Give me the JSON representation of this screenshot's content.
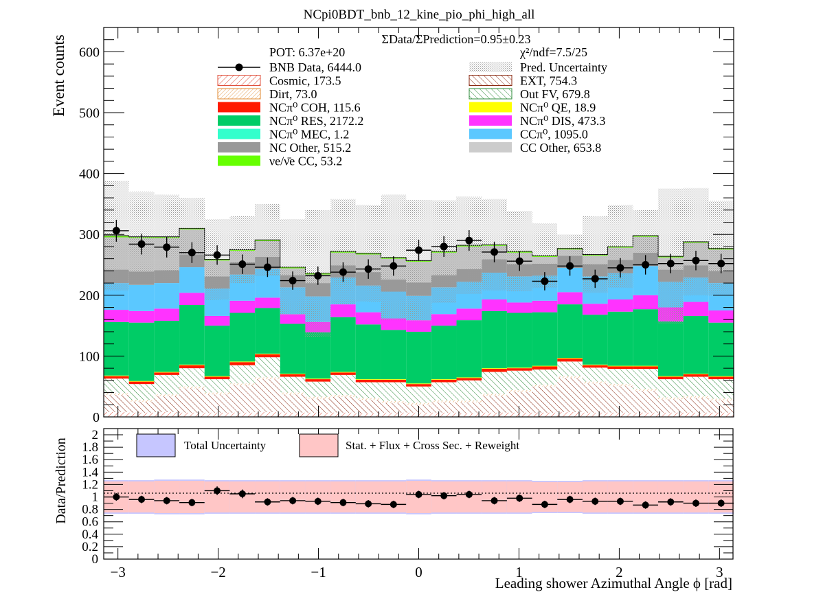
{
  "chart_data": [
    {
      "type": "bar",
      "stacked": true,
      "title": "NCpi0BDT_bnb_12_kine_pio_phi_high_all",
      "ylabel": "Event counts",
      "xlim": [
        -3.14159,
        3.14159
      ],
      "ylim": [
        0,
        640
      ],
      "y_ticks": [
        "0",
        "100",
        "200",
        "300",
        "400",
        "500",
        "600"
      ],
      "ratio_text": "ΣData/ΣPrediction=0.95±0.23",
      "pot_text": "POT: 6.37e+20",
      "chi2_text": "χ²/ndf=7.5/25",
      "legend": [
        {
          "key": "data",
          "label": "BNB Data, 6444.0"
        },
        {
          "key": "unc",
          "label": "Pred. Uncertainty"
        },
        {
          "key": "cosmic",
          "label": "Cosmic, 173.5"
        },
        {
          "key": "ext",
          "label": "EXT, 754.3"
        },
        {
          "key": "dirt",
          "label": "Dirt, 73.0"
        },
        {
          "key": "outfv",
          "label": "Out FV, 679.8"
        },
        {
          "key": "coh",
          "label": "NCπ⁰ COH,  115.6"
        },
        {
          "key": "qe",
          "label": "NCπ⁰ QE,  18.9"
        },
        {
          "key": "res",
          "label": "NCπ⁰ RES,  2172.2"
        },
        {
          "key": "dis",
          "label": "NCπ⁰ DIS,  473.3"
        },
        {
          "key": "mec",
          "label": "NCπ⁰ MEC,  1.2"
        },
        {
          "key": "ccpi0",
          "label": "CCπ⁰, 1095.0"
        },
        {
          "key": "ncother",
          "label": "NC Other, 515.2"
        },
        {
          "key": "ccother",
          "label": "CC Other, 653.8"
        },
        {
          "key": "nue",
          "label": "νe/ν̄e CC, 53.2"
        }
      ],
      "colors": {
        "cosmic": "#e0503c",
        "ext": "#8b2a12",
        "dirt": "#e08a30",
        "outfv": "#2e8b3a",
        "coh": "#ff1a00",
        "qe": "#ffff00",
        "res": "#00cc66",
        "dis": "#ff33ff",
        "mec": "#33ffcc",
        "ccpi0": "#5bc8ff",
        "ncother": "#999999",
        "ccother": "#cccccc",
        "nue": "#66ff00",
        "unc": "#bbbbbb",
        "data": "#000000"
      },
      "n_bins": 25,
      "series": [
        {
          "key": "cosmic",
          "name": "Cosmic, 173.5",
          "values": [
            8,
            7,
            8,
            7,
            7,
            7,
            8,
            7,
            7,
            7,
            6,
            7,
            7,
            7,
            6,
            7,
            7,
            7,
            8,
            7,
            7,
            7,
            7,
            7,
            7
          ]
        },
        {
          "key": "ext",
          "name": "EXT, 754.3",
          "values": [
            28,
            18,
            26,
            40,
            30,
            45,
            54,
            30,
            23,
            26,
            22,
            16,
            13,
            17,
            18,
            28,
            34,
            43,
            56,
            48,
            44,
            36,
            22,
            24,
            20
          ]
        },
        {
          "key": "dirt",
          "name": "Dirt, 73.0",
          "values": [
            3,
            3,
            3,
            3,
            3,
            3,
            3,
            3,
            3,
            3,
            3,
            3,
            3,
            3,
            3,
            3,
            3,
            3,
            3,
            3,
            3,
            3,
            3,
            3,
            3
          ]
        },
        {
          "key": "outfv",
          "name": "Out FV, 679.8",
          "values": [
            24,
            26,
            32,
            30,
            22,
            30,
            33,
            26,
            25,
            33,
            26,
            31,
            27,
            30,
            33,
            36,
            32,
            25,
            24,
            23,
            25,
            33,
            30,
            32,
            32
          ]
        },
        {
          "key": "coh",
          "name": "NCπ⁰ COH,  115.6",
          "values": [
            4,
            4,
            4,
            5,
            4,
            5,
            5,
            4,
            4,
            4,
            4,
            4,
            4,
            4,
            4,
            5,
            4,
            5,
            5,
            4,
            4,
            4,
            4,
            4,
            4
          ]
        },
        {
          "key": "qe",
          "name": "NCπ⁰ QE,  18.9",
          "values": [
            1,
            1,
            1,
            1,
            1,
            1,
            1,
            1,
            1,
            1,
            1,
            1,
            1,
            1,
            1,
            1,
            1,
            1,
            1,
            1,
            1,
            1,
            1,
            1,
            1
          ]
        },
        {
          "key": "res",
          "name": "NCπ⁰ RES,  2172.2",
          "values": [
            88,
            96,
            84,
            98,
            83,
            80,
            75,
            82,
            76,
            90,
            90,
            81,
            85,
            88,
            94,
            94,
            90,
            88,
            88,
            82,
            89,
            93,
            90,
            95,
            88
          ]
        },
        {
          "key": "dis",
          "name": "NCπ⁰ DIS,  473.3",
          "values": [
            20,
            19,
            20,
            20,
            16,
            20,
            17,
            16,
            17,
            21,
            20,
            19,
            19,
            19,
            19,
            19,
            17,
            19,
            20,
            18,
            20,
            23,
            23,
            23,
            20
          ]
        },
        {
          "key": "mec",
          "name": "NCπ⁰ MEC,  1.2",
          "values": [
            0,
            0,
            0,
            0,
            0,
            0,
            0,
            0,
            0,
            0,
            0,
            0,
            0,
            0,
            0,
            0,
            0,
            0,
            0,
            0,
            0,
            0,
            0,
            0,
            0
          ]
        },
        {
          "key": "ccpi0",
          "name": "CCπ⁰, 1095.0",
          "values": [
            44,
            43,
            42,
            42,
            45,
            43,
            47,
            44,
            42,
            44,
            44,
            44,
            40,
            44,
            44,
            44,
            43,
            41,
            40,
            45,
            43,
            48,
            42,
            40,
            45
          ]
        },
        {
          "key": "ncother",
          "name": "NC Other, 515.2",
          "values": [
            22,
            22,
            21,
            21,
            20,
            20,
            20,
            20,
            22,
            20,
            22,
            20,
            22,
            20,
            21,
            22,
            20,
            20,
            20,
            20,
            22,
            22,
            20,
            20,
            20
          ]
        },
        {
          "key": "ccother",
          "name": "CC Other, 653.8",
          "values": [
            53,
            55,
            53,
            41,
            26,
            19,
            26,
            11,
            14,
            21,
            29,
            34,
            34,
            37,
            37,
            22,
            19,
            11,
            10,
            14,
            20,
            26,
            20,
            37,
            35
          ]
        },
        {
          "key": "nue",
          "name": "νe/ν̄e CC, 53.2",
          "values": [
            3,
            2,
            2,
            2,
            2,
            2,
            2,
            2,
            2,
            2,
            2,
            2,
            2,
            2,
            2,
            2,
            2,
            2,
            2,
            2,
            2,
            2,
            2,
            2,
            2
          ]
        }
      ],
      "pred_uncertainty_top": [
        388,
        370,
        365,
        360,
        325,
        330,
        350,
        325,
        340,
        358,
        348,
        365,
        357,
        356,
        362,
        358,
        338,
        318,
        300,
        330,
        348,
        340,
        375,
        376,
        355
      ],
      "data_points": {
        "name": "BNB Data, 6444.0",
        "x": [
          -3.0159,
          -2.7646,
          -2.5133,
          -2.2619,
          -2.0106,
          -1.7593,
          -1.508,
          -1.2566,
          -1.0053,
          -0.754,
          -0.5027,
          -0.2513,
          0,
          0.2513,
          0.5027,
          0.754,
          1.0053,
          1.2566,
          1.508,
          1.7593,
          2.0106,
          2.2619,
          2.5133,
          2.7646,
          3.0159
        ],
        "y": [
          306,
          284,
          279,
          270,
          266,
          251,
          246,
          224,
          232,
          238,
          243,
          248,
          274,
          280,
          290,
          271,
          256,
          223,
          248,
          227,
          245,
          250,
          252,
          257,
          252
        ],
        "yerr": [
          18,
          17,
          17,
          17,
          16,
          16,
          16,
          15,
          15,
          16,
          16,
          16,
          17,
          17,
          17,
          17,
          16,
          15,
          16,
          15,
          16,
          16,
          16,
          16,
          16
        ]
      }
    },
    {
      "type": "scatter",
      "xlabel": "Leading shower Azimuthal Angle ϕ [rad]",
      "ylabel": "Data/Prediction",
      "xlim": [
        -3.14159,
        3.14159
      ],
      "ylim": [
        0,
        2.1
      ],
      "x_ticks": [
        "−3",
        "−2",
        "−1",
        "0",
        "1",
        "2",
        "3"
      ],
      "y_ticks": [
        "0",
        "0.2",
        "0.4",
        "0.6",
        "0.8",
        "1",
        "1.2",
        "1.4",
        "1.6",
        "1.8",
        "2"
      ],
      "legend": [
        {
          "key": "total",
          "label": "Total Uncertainty"
        },
        {
          "key": "stat",
          "label": "Stat. + Flux + Cross Sec. + Reweight"
        }
      ],
      "colors": {
        "total": "#c6c6ff",
        "stat": "#ffc6c6"
      },
      "total_band_halfwidth": [
        0.27,
        0.27,
        0.28,
        0.28,
        0.27,
        0.27,
        0.27,
        0.27,
        0.27,
        0.27,
        0.27,
        0.27,
        0.28,
        0.27,
        0.27,
        0.27,
        0.27,
        0.26,
        0.26,
        0.27,
        0.27,
        0.27,
        0.27,
        0.27,
        0.27
      ],
      "stat_band_halfwidth": [
        0.25,
        0.25,
        0.26,
        0.26,
        0.25,
        0.25,
        0.25,
        0.25,
        0.25,
        0.25,
        0.25,
        0.25,
        0.26,
        0.25,
        0.25,
        0.25,
        0.25,
        0.24,
        0.24,
        0.25,
        0.25,
        0.25,
        0.25,
        0.25,
        0.25
      ],
      "ratio": {
        "x": [
          -3.0159,
          -2.7646,
          -2.5133,
          -2.2619,
          -2.0106,
          -1.7593,
          -1.508,
          -1.2566,
          -1.0053,
          -0.754,
          -0.5027,
          -0.2513,
          0,
          0.2513,
          0.5027,
          0.754,
          1.0053,
          1.2566,
          1.508,
          1.7593,
          2.0106,
          2.2619,
          2.5133,
          2.7646,
          3.0159
        ],
        "y": [
          1.0,
          0.96,
          0.94,
          0.91,
          1.1,
          1.05,
          0.92,
          0.94,
          0.93,
          0.91,
          0.89,
          0.88,
          1.04,
          1.02,
          1.04,
          0.94,
          0.98,
          0.88,
          0.96,
          0.93,
          0.93,
          0.87,
          0.92,
          0.9,
          0.9
        ],
        "yerr": [
          0.06,
          0.06,
          0.06,
          0.06,
          0.07,
          0.07,
          0.06,
          0.06,
          0.06,
          0.06,
          0.06,
          0.06,
          0.06,
          0.06,
          0.06,
          0.06,
          0.06,
          0.06,
          0.06,
          0.06,
          0.06,
          0.06,
          0.06,
          0.06,
          0.06
        ]
      }
    }
  ]
}
